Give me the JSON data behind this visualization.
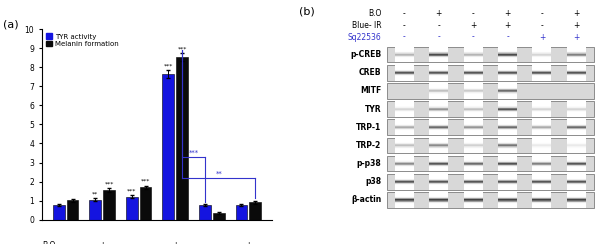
{
  "legend_labels": [
    "TYR activity",
    "Melanin formation"
  ],
  "bar_colors": [
    "#1414e0",
    "#0a0a0a"
  ],
  "groups": [
    {
      "bo": "-",
      "blueir": "-",
      "sq": "-"
    },
    {
      "bo": "+",
      "blueir": "-",
      "sq": "-"
    },
    {
      "bo": "-",
      "blueir": "+",
      "sq": "-"
    },
    {
      "bo": "+",
      "blueir": "+",
      "sq": "-"
    },
    {
      "bo": "-",
      "blueir": "-",
      "sq": "+"
    },
    {
      "bo": "+",
      "blueir": "+",
      "sq": "+"
    }
  ],
  "tyr_values": [
    0.75,
    1.05,
    1.2,
    7.65,
    0.75,
    0.78
  ],
  "melanin_values": [
    1.02,
    1.55,
    1.7,
    8.55,
    0.35,
    0.9
  ],
  "tyr_errors": [
    0.06,
    0.07,
    0.07,
    0.22,
    0.05,
    0.06
  ],
  "melanin_errors": [
    0.07,
    0.09,
    0.09,
    0.2,
    0.04,
    0.07
  ],
  "sig_tyr": [
    "",
    "**",
    "***",
    "***",
    "",
    ""
  ],
  "sig_melanin": [
    "",
    "***",
    "***",
    "***",
    "",
    ""
  ],
  "bracket_color": "#3333cc",
  "wb_labels": [
    "p-CREB",
    "CREB",
    "MITF",
    "TYR",
    "TRP-1",
    "TRP-2",
    "p-p38",
    "p38",
    "β-actin"
  ],
  "wb_header": [
    "B.O",
    "Blue- IR",
    "Sq22536"
  ],
  "wb_cols": [
    [
      "-",
      "-",
      "-"
    ],
    [
      "+",
      "-",
      "-"
    ],
    [
      "-",
      "+",
      "-"
    ],
    [
      "+",
      "+",
      "-"
    ],
    [
      "-",
      "-",
      "+"
    ],
    [
      "+",
      "+",
      "+"
    ]
  ],
  "band_patterns": [
    [
      0.35,
      0.85,
      0.35,
      0.85,
      0.2,
      0.6
    ],
    [
      0.8,
      0.8,
      0.8,
      0.8,
      0.8,
      0.8
    ],
    [
      0.02,
      0.3,
      0.25,
      0.7,
      0.02,
      0.02
    ],
    [
      0.2,
      0.5,
      0.3,
      0.8,
      0.2,
      0.2
    ],
    [
      0.4,
      0.7,
      0.5,
      0.7,
      0.4,
      0.7
    ],
    [
      0.3,
      0.55,
      0.22,
      0.65,
      0.1,
      0.1
    ],
    [
      0.55,
      0.8,
      0.7,
      0.82,
      0.6,
      0.8
    ],
    [
      0.8,
      0.8,
      0.8,
      0.8,
      0.8,
      0.8
    ],
    [
      0.9,
      0.9,
      0.9,
      0.9,
      0.9,
      0.9
    ]
  ]
}
